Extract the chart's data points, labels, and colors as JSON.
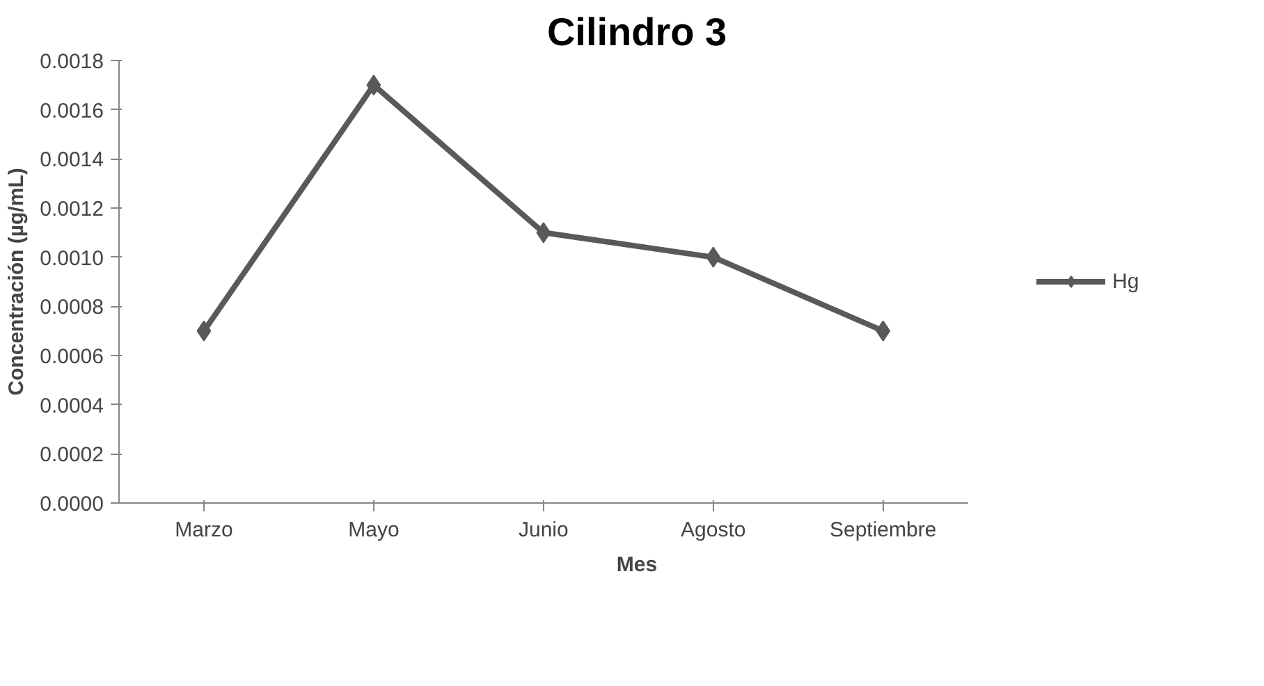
{
  "chart_data": {
    "type": "line",
    "title": "Cilindro 3",
    "xlabel": "Mes",
    "ylabel": "Concentración (µg/mL)",
    "categories": [
      "Marzo",
      "Mayo",
      "Junio",
      "Agosto",
      "Septiembre"
    ],
    "series": [
      {
        "name": "Hg",
        "color": "#595959",
        "values": [
          0.0007,
          0.0017,
          0.0011,
          0.001,
          0.0007
        ]
      }
    ],
    "ylim": [
      0,
      0.0018
    ],
    "yticks": [
      {
        "value": 0,
        "label": "0.0000"
      },
      {
        "value": 0.0002,
        "label": "0.0002"
      },
      {
        "value": 0.0004,
        "label": "0.0004"
      },
      {
        "value": 0.0006,
        "label": "0.0006"
      },
      {
        "value": 0.0008,
        "label": "0.0008"
      },
      {
        "value": 0.001,
        "label": "0.0010"
      },
      {
        "value": 0.0012,
        "label": "0.0012"
      },
      {
        "value": 0.0014,
        "label": "0.0014"
      },
      {
        "value": 0.0016,
        "label": "0.0016"
      },
      {
        "value": 0.0018,
        "label": "0.0018"
      }
    ],
    "grid": false,
    "legend": "right",
    "marker": "diamond",
    "line_style": "solid"
  }
}
